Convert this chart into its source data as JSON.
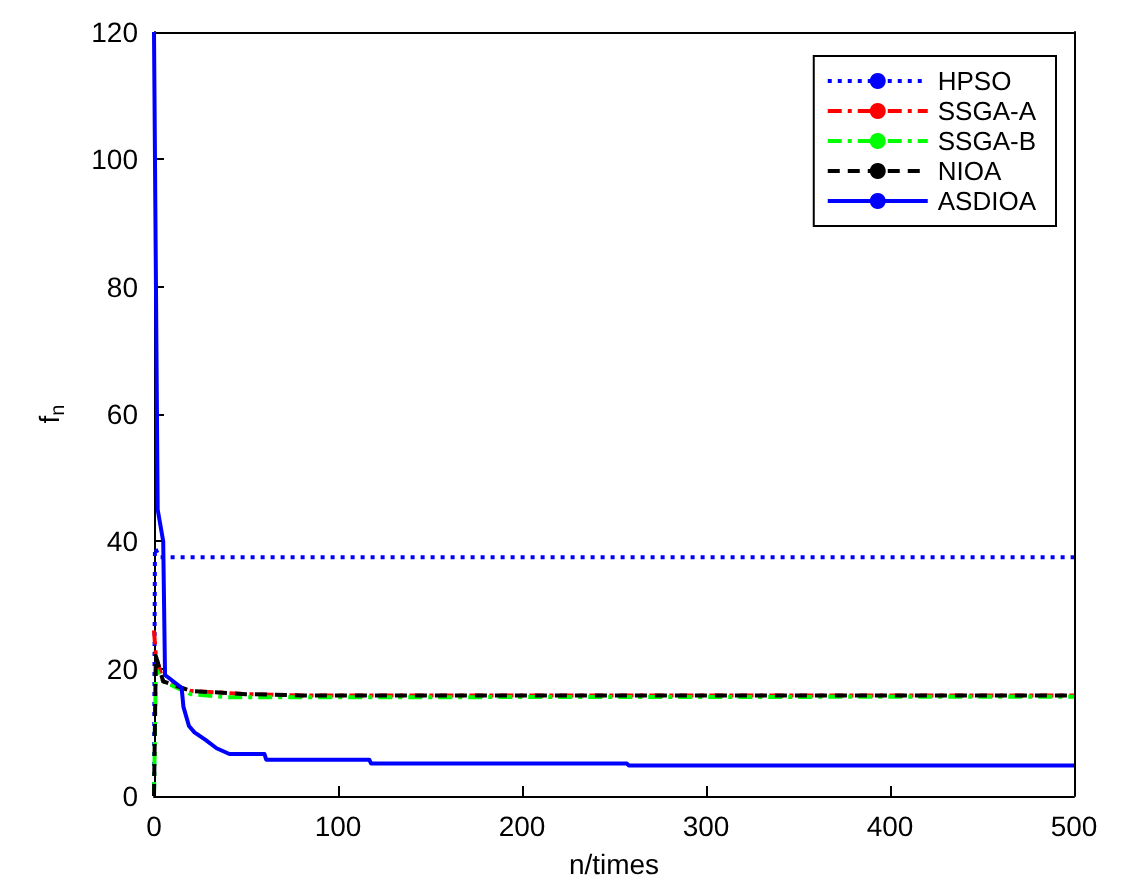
{
  "chart_data": {
    "type": "line",
    "xlabel": "n/times",
    "ylabel": "f$_{n}$",
    "xlim": [
      0,
      500
    ],
    "ylim": [
      0,
      120
    ],
    "xticks": [
      0,
      100,
      200,
      300,
      400,
      500
    ],
    "yticks": [
      0,
      20,
      40,
      60,
      80,
      100,
      120
    ],
    "grid": false,
    "legend": "top right",
    "marker": "none",
    "series": [
      {
        "name": "HPSO",
        "color": "#0000ff",
        "line_style": "dotted",
        "x": [
          0,
          0.5,
          3,
          500
        ],
        "values": [
          0,
          39,
          37.5,
          37.5
        ]
      },
      {
        "name": "SSGA-A",
        "color": "#ff0000",
        "line_style": "dashdot",
        "x": [
          0,
          1,
          5,
          20,
          50,
          80,
          500
        ],
        "values": [
          26,
          22,
          18,
          16.5,
          16,
          15.8,
          15.8
        ]
      },
      {
        "name": "SSGA-B",
        "color": "#00ff00",
        "line_style": "dashdot",
        "x": [
          0,
          1,
          5,
          20,
          40,
          500
        ],
        "values": [
          0,
          20,
          18,
          16,
          15.5,
          15.6
        ]
      },
      {
        "name": "NIOA",
        "color": "#000000",
        "line_style": "dashed",
        "x": [
          0,
          1,
          5,
          20,
          50,
          80,
          500
        ],
        "values": [
          0,
          22,
          18,
          16.5,
          16,
          15.8,
          15.8
        ]
      },
      {
        "name": "ASDIOA",
        "color": "#0000ff",
        "line_style": "solid",
        "x": [
          0,
          2,
          5,
          6,
          15,
          16,
          19,
          22,
          28,
          34,
          41,
          60,
          61,
          117,
          118,
          257,
          258,
          500
        ],
        "values": [
          120,
          45,
          40,
          19,
          17,
          14,
          11,
          10,
          8.8,
          7.5,
          6.6,
          6.6,
          5.7,
          5.7,
          5.1,
          5.1,
          4.8,
          4.8
        ]
      }
    ]
  }
}
